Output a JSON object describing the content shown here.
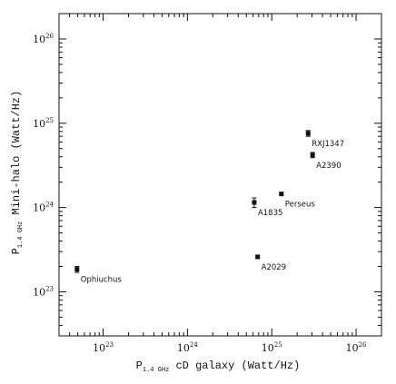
{
  "chart_data": {
    "type": "scatter",
    "xscale": "log",
    "yscale": "log",
    "xlim": [
      3e+22,
      2e+26
    ],
    "ylim": [
      3e+22,
      2e+26
    ],
    "xlabel": {
      "main": "P",
      "sub": "1.4 GHz",
      "rest": " cD galaxy (Watt/Hz)"
    },
    "ylabel": {
      "main": "P",
      "sub": "1.4 GHz",
      "rest": " Mini-halo (Watt/Hz)"
    },
    "x_ticks": [
      {
        "value": 1e+23,
        "base": "10",
        "exp": "23"
      },
      {
        "value": 1e+24,
        "base": "10",
        "exp": "24"
      },
      {
        "value": 1e+25,
        "base": "10",
        "exp": "25"
      },
      {
        "value": 1e+26,
        "base": "10",
        "exp": "26"
      }
    ],
    "y_ticks": [
      {
        "value": 1e+23,
        "base": "10",
        "exp": "23"
      },
      {
        "value": 1e+24,
        "base": "10",
        "exp": "24"
      },
      {
        "value": 1e+25,
        "base": "10",
        "exp": "25"
      },
      {
        "value": 1e+26,
        "base": "10",
        "exp": "26"
      }
    ],
    "points": [
      {
        "label": "Ophiuchus",
        "x": 4.9e+22,
        "y": 1.85e+23,
        "yerr": [
          1.7e+23,
          2e+23
        ]
      },
      {
        "label": "A2029",
        "x": 6.8e+24,
        "y": 2.6e+23,
        "yerr": [
          2.5e+23,
          2.72e+23
        ]
      },
      {
        "label": "A1835",
        "x": 6.2e+24,
        "y": 1.15e+24,
        "yerr": [
          1e+24,
          1.3e+24
        ]
      },
      {
        "label": "Perseus",
        "x": 1.3e+25,
        "y": 1.45e+24,
        "yerr": [
          1.4e+24,
          1.5e+24
        ]
      },
      {
        "label": "RXJ1347",
        "x": 2.7e+25,
        "y": 7.6e+24,
        "yerr": [
          7e+24,
          8.2e+24
        ]
      },
      {
        "label": "A2390",
        "x": 3.05e+25,
        "y": 4.2e+24,
        "yerr": [
          3.9e+24,
          4.5e+24
        ]
      }
    ],
    "grid": false,
    "colors": {
      "marker": "#111111",
      "axes": "#111111"
    }
  }
}
